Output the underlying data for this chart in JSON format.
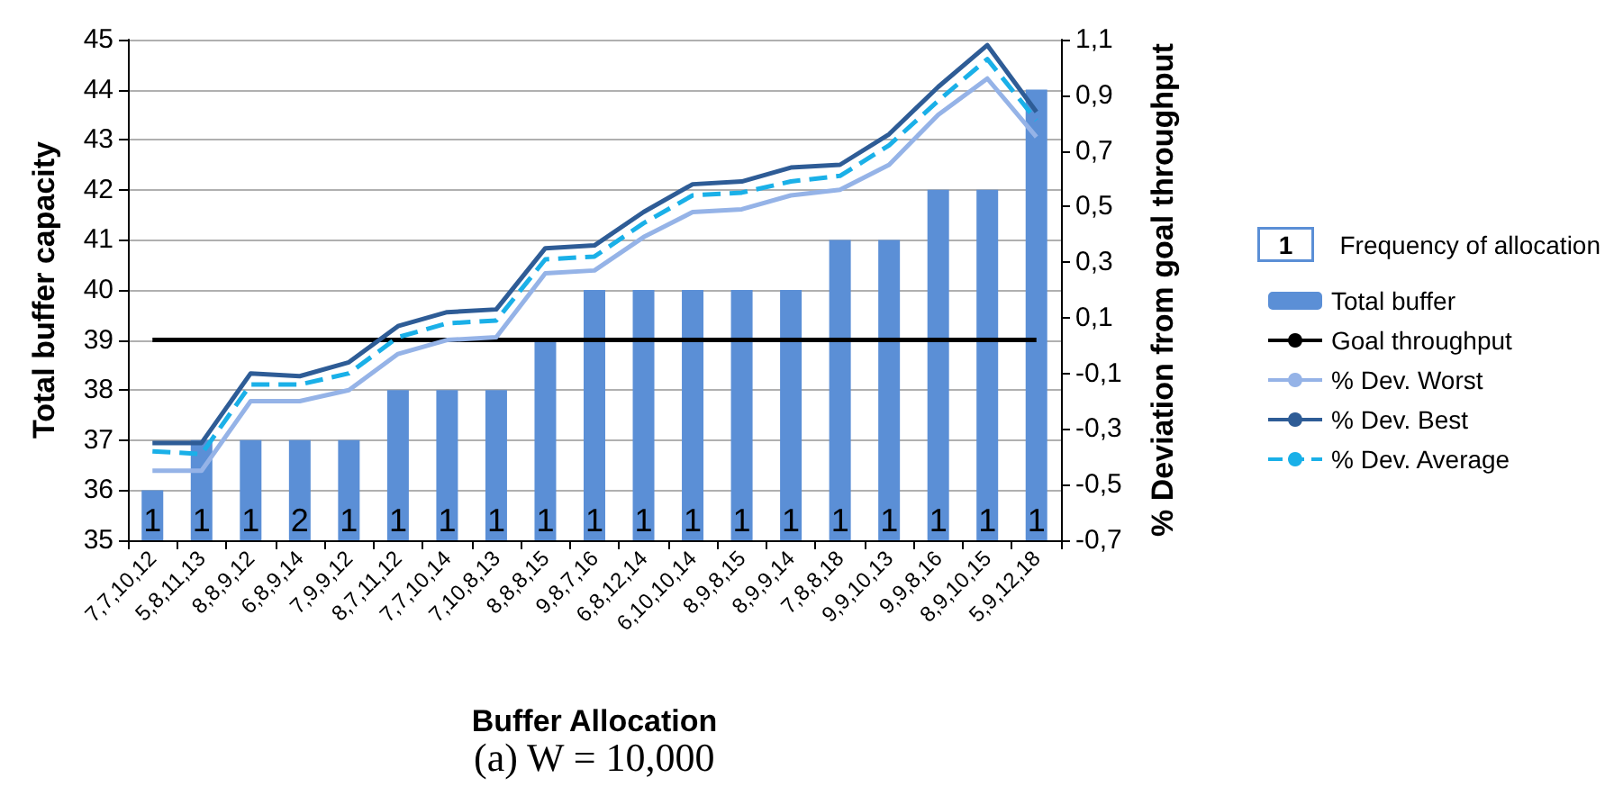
{
  "chart_data": {
    "type": "bar",
    "xlabel": "Buffer Allocation",
    "ylabel": "Total buffer capacity",
    "y2label": "% Deviation from goal throughput",
    "annotations": [
      "Frequency of allocation",
      "(a) W = 10,000",
      "1",
      "1",
      "1",
      "2",
      "1",
      "1",
      "1",
      "1",
      "1",
      "1",
      "1",
      "1",
      "1",
      "1",
      "1",
      "1",
      "1",
      "1",
      "1"
    ],
    "categories": [
      "7,7,10,12",
      "5,8,11,13",
      "8,8,9,12",
      "6,8,9,14",
      "7,9,9,12",
      "8,7,11,12",
      "7,7,10,14",
      "7,10,8,13",
      "8,8,8,15",
      "9,8,7,16",
      "6,8,12,14",
      "6,10,10,14",
      "8,9,8,15",
      "8,9,9,14",
      "7,8,8,18",
      "9,9,10,13",
      "9,9,8,16",
      "8,9,10,15",
      "5,9,12,18"
    ],
    "series": [
      {
        "name": "Total buffer",
        "type": "bar",
        "color": "#5b8fd6",
        "values": [
          36,
          37,
          37,
          37,
          37,
          38,
          38,
          38,
          39,
          40,
          40,
          40,
          40,
          40,
          41,
          41,
          42,
          42,
          44
        ]
      },
      {
        "name": "Goal throughput",
        "type": "line",
        "axis": "y2",
        "color": "#000000",
        "line_style": "solid",
        "values": [
          0.02,
          0.02,
          0.02,
          0.02,
          0.02,
          0.02,
          0.02,
          0.02,
          0.02,
          0.02,
          0.02,
          0.02,
          0.02,
          0.02,
          0.02,
          0.02,
          0.02,
          0.02,
          0.02
        ]
      },
      {
        "name": "% Dev. Worst",
        "type": "line",
        "axis": "y2",
        "color": "#95b3e7",
        "line_style": "solid",
        "values": [
          -0.45,
          -0.45,
          -0.2,
          -0.2,
          -0.16,
          -0.03,
          0.02,
          0.03,
          0.26,
          0.27,
          0.39,
          0.48,
          0.49,
          0.54,
          0.56,
          0.65,
          0.83,
          0.96,
          0.75
        ]
      },
      {
        "name": "% Dev. Best",
        "type": "line",
        "axis": "y2",
        "color": "#2e5c96",
        "line_style": "solid",
        "values": [
          -0.35,
          -0.35,
          -0.1,
          -0.11,
          -0.06,
          0.07,
          0.12,
          0.13,
          0.35,
          0.36,
          0.48,
          0.58,
          0.59,
          0.64,
          0.65,
          0.76,
          0.93,
          1.08,
          0.84
        ]
      },
      {
        "name": "% Dev. Average",
        "type": "line",
        "axis": "y2",
        "color": "#1ab0e8",
        "line_style": "dashed",
        "values": [
          -0.38,
          -0.39,
          -0.14,
          -0.14,
          -0.1,
          0.03,
          0.08,
          0.09,
          0.31,
          0.32,
          0.44,
          0.54,
          0.55,
          0.59,
          0.61,
          0.72,
          0.88,
          1.03,
          0.81
        ]
      }
    ],
    "ylim": [
      35,
      45
    ],
    "yticks": [
      35,
      36,
      37,
      38,
      39,
      40,
      41,
      42,
      43,
      44,
      45
    ],
    "y2lim": [
      -0.7,
      1.1
    ],
    "y2ticks": [
      {
        "value": -0.7,
        "label": "-0,7"
      },
      {
        "value": -0.5,
        "label": "-0,5"
      },
      {
        "value": -0.3,
        "label": "-0,3"
      },
      {
        "value": -0.1,
        "label": "-0,1"
      },
      {
        "value": 0.1,
        "label": "0,1"
      },
      {
        "value": 0.3,
        "label": "0,3"
      },
      {
        "value": 0.5,
        "label": "0,5"
      },
      {
        "value": 0.7,
        "label": "0,7"
      },
      {
        "value": 0.9,
        "label": "0,9"
      },
      {
        "value": 1.1,
        "label": "1,1"
      }
    ],
    "grid": "y",
    "legend": "right",
    "marker": "none"
  }
}
